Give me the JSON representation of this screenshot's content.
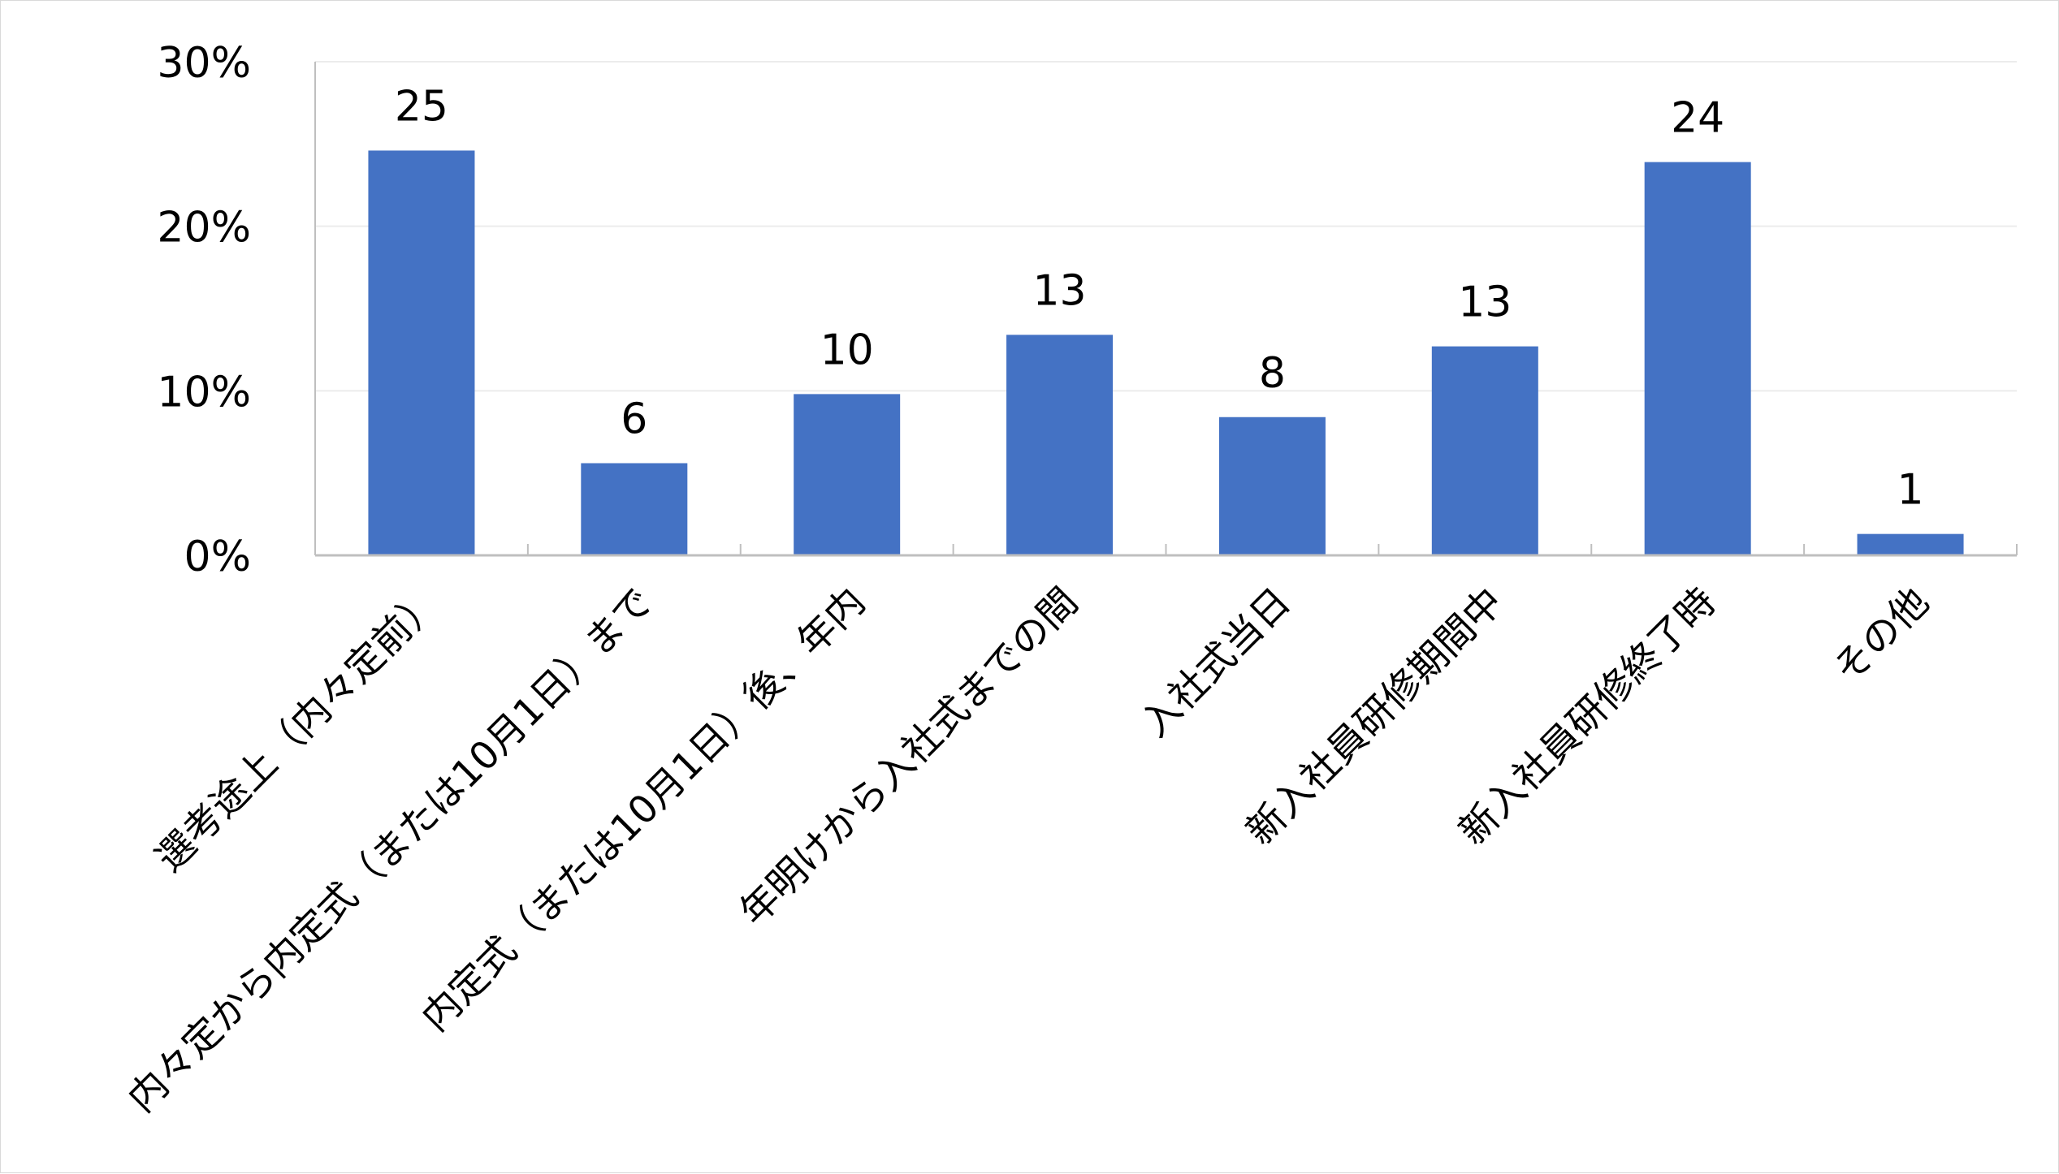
{
  "chart_data": {
    "type": "bar",
    "categories": [
      "選考途上（内々定前）",
      "内々定から内定式（または10月1日）まで",
      "内定式（または10月1日）後、年内",
      "年明けから入社式までの間",
      "入社式当日",
      "新入社員研修期間中",
      "新入社員研修終了時",
      "その他"
    ],
    "values": [
      24.6,
      5.6,
      9.8,
      13.4,
      8.4,
      12.7,
      23.9,
      1.3
    ],
    "data_labels": [
      "25",
      "6",
      "10",
      "13",
      "8",
      "13",
      "24",
      "1"
    ],
    "yticks": [
      "0%",
      "10%",
      "20%",
      "30%"
    ],
    "ytick_values": [
      0,
      10,
      20,
      30
    ],
    "ylim": [
      0,
      30
    ],
    "title": "",
    "xlabel": "",
    "ylabel": "",
    "grid": true,
    "legend": "none",
    "bar_color": "#4472c4",
    "grid_color": "#ececec",
    "axis_color": "#bfbfbf"
  }
}
